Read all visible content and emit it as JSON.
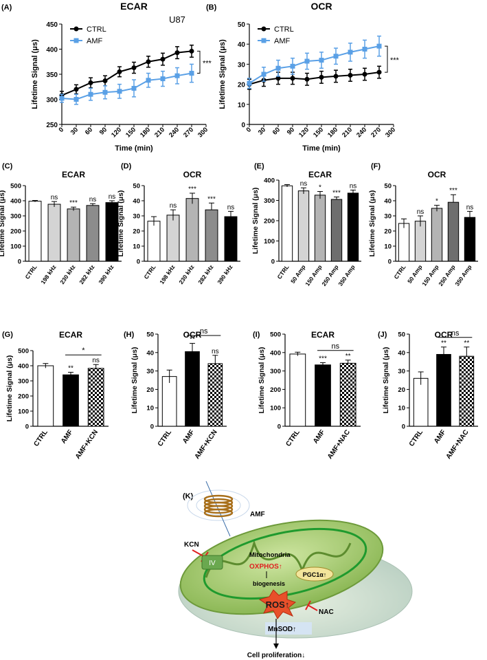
{
  "colors": {
    "ctrl": "#000000",
    "amf": "#5aa0e6",
    "gray_light": "#d4d4d4",
    "gray_mid": "#b4b4b4",
    "gray_dark": "#8c8c8c",
    "gray_darker": "#6e6e6e",
    "red": "#e02020",
    "green": "#6aa84f",
    "yellow": "#f3e59b"
  },
  "chart_data": [
    {
      "id": "A",
      "type": "line",
      "panel_label": "(A)",
      "title": "ECAR",
      "subtitle": "U87",
      "xlabel": "Time (min)",
      "ylabel": "Lifetime Signal (μs)",
      "xlim": [
        0,
        300
      ],
      "ylim": [
        250,
        450
      ],
      "xticks": [
        0,
        30,
        60,
        90,
        120,
        150,
        180,
        210,
        240,
        270,
        300
      ],
      "yticks": [
        250,
        300,
        350,
        400,
        450
      ],
      "legend": "top-left",
      "significance": "***",
      "series": [
        {
          "name": "CTRL",
          "color": "#000000",
          "x": [
            0,
            30,
            60,
            90,
            120,
            150,
            180,
            210,
            240,
            270
          ],
          "y": [
            308,
            320,
            333,
            337,
            355,
            363,
            375,
            380,
            393,
            396
          ],
          "err": [
            8,
            9,
            10,
            10,
            10,
            11,
            11,
            12,
            12,
            12
          ]
        },
        {
          "name": "AMF",
          "color": "#5aa0e6",
          "x": [
            0,
            30,
            60,
            90,
            120,
            150,
            180,
            210,
            240,
            270
          ],
          "y": [
            302,
            300,
            310,
            314,
            316,
            322,
            338,
            341,
            347,
            352
          ],
          "err": [
            8,
            10,
            12,
            13,
            14,
            17,
            14,
            15,
            16,
            18
          ]
        }
      ]
    },
    {
      "id": "B",
      "type": "line",
      "panel_label": "(B)",
      "title": "OCR",
      "subtitle": "",
      "xlabel": "Time (min)",
      "ylabel": "Lifetime Signal (μs)",
      "xlim": [
        0,
        300
      ],
      "ylim": [
        0,
        50
      ],
      "xticks": [
        0,
        30,
        60,
        90,
        120,
        150,
        180,
        210,
        240,
        270,
        300
      ],
      "yticks": [
        0,
        10,
        20,
        30,
        40,
        50
      ],
      "legend": "top-left",
      "significance": "***",
      "series": [
        {
          "name": "CTRL",
          "color": "#000000",
          "x": [
            0,
            30,
            60,
            90,
            120,
            150,
            180,
            210,
            240,
            270
          ],
          "y": [
            20,
            22,
            23,
            23,
            22.5,
            23.5,
            24,
            24.5,
            25,
            26
          ],
          "err": [
            2.5,
            3,
            3,
            3,
            3,
            3,
            3,
            3,
            3,
            3
          ]
        },
        {
          "name": "AMF",
          "color": "#5aa0e6",
          "x": [
            0,
            30,
            60,
            90,
            120,
            150,
            180,
            210,
            240,
            270
          ],
          "y": [
            20.5,
            25,
            28,
            29,
            31.5,
            32,
            34,
            36,
            37.5,
            39
          ],
          "err": [
            2.5,
            3.5,
            4,
            4,
            4,
            4,
            4,
            4.5,
            4.5,
            5
          ]
        }
      ]
    },
    {
      "id": "C",
      "type": "bar",
      "panel_label": "(C)",
      "title": "ECAR",
      "ylabel": "Lifetime Signal (μs)",
      "ylim": [
        0,
        500
      ],
      "yticks": [
        0,
        100,
        200,
        300,
        400,
        500
      ],
      "categories": [
        "CTRL",
        "198 kHz",
        "230 kHz",
        "282 kHz",
        "390 kHz"
      ],
      "values": [
        397,
        377,
        346,
        369,
        388
      ],
      "errors": [
        5,
        18,
        12,
        12,
        12
      ],
      "fills": [
        "#ffffff",
        "#d4d4d4",
        "#b4b4b4",
        "#8c8c8c",
        "#000000"
      ],
      "labels": [
        "",
        "ns",
        "***",
        "ns",
        "ns"
      ]
    },
    {
      "id": "D",
      "type": "bar",
      "panel_label": "(D)",
      "title": "OCR",
      "ylabel": "Lifetime Signal (μs)",
      "ylim": [
        0,
        50
      ],
      "yticks": [
        0,
        10,
        20,
        30,
        40,
        50
      ],
      "categories": [
        "CTRL",
        "198 kHz",
        "230 kHz",
        "282 kHz",
        "390 kHz"
      ],
      "values": [
        26.5,
        30.5,
        41.5,
        34,
        29.5
      ],
      "errors": [
        3,
        3.5,
        3.5,
        4.5,
        3.5
      ],
      "fills": [
        "#ffffff",
        "#d4d4d4",
        "#b4b4b4",
        "#8c8c8c",
        "#000000"
      ],
      "labels": [
        "",
        "ns",
        "***",
        "***",
        "ns"
      ]
    },
    {
      "id": "E",
      "type": "bar",
      "panel_label": "(E)",
      "title": "ECAR",
      "ylabel": "Lifetime Signal (μs)",
      "ylim": [
        0,
        400
      ],
      "yticks": [
        0,
        100,
        200,
        300,
        400
      ],
      "categories": [
        "CTRL",
        "50 Amp",
        "150 Amp",
        "250 Amp",
        "350 Amp"
      ],
      "values": [
        372,
        347,
        326,
        305,
        336
      ],
      "errors": [
        6,
        15,
        18,
        12,
        15
      ],
      "fills": [
        "#ffffff",
        "#d4d4d4",
        "#b4b4b4",
        "#6e6e6e",
        "#000000"
      ],
      "labels": [
        "",
        "ns",
        "*",
        "***",
        "ns"
      ]
    },
    {
      "id": "F",
      "type": "bar",
      "panel_label": "(F)",
      "title": "OCR",
      "ylabel": "Lifetime Signal (μs)",
      "ylim": [
        0,
        50
      ],
      "yticks": [
        0,
        10,
        20,
        30,
        40,
        50
      ],
      "categories": [
        "CTRL",
        "50 Amp",
        "150 Amp",
        "250 Amp",
        "350 Amp"
      ],
      "values": [
        25,
        26.5,
        35,
        39,
        29
      ],
      "errors": [
        3,
        3.5,
        2,
        5,
        4
      ],
      "fills": [
        "#ffffff",
        "#d4d4d4",
        "#b4b4b4",
        "#6e6e6e",
        "#000000"
      ],
      "labels": [
        "",
        "ns",
        "*",
        "***",
        "ns"
      ]
    },
    {
      "id": "G",
      "type": "bar",
      "panel_label": "(G)",
      "title": "ECAR",
      "ylabel": "Lifetime Signal (μs)",
      "ylim": [
        0,
        500
      ],
      "yticks": [
        0,
        100,
        200,
        300,
        400,
        500
      ],
      "categories": [
        "CTRL",
        "AMF",
        "AMF+KCN"
      ],
      "values": [
        400,
        340,
        383
      ],
      "errors": [
        15,
        17,
        25
      ],
      "fills": [
        "#ffffff",
        "#000000",
        "checker"
      ],
      "labels": [
        "",
        "**",
        "ns"
      ],
      "bracket": {
        "from": 1,
        "to": 2,
        "label": "*"
      }
    },
    {
      "id": "H",
      "type": "bar",
      "panel_label": "(H)",
      "title": "OCR",
      "ylabel": "Lifetime Signal (μs)",
      "ylim": [
        0,
        50
      ],
      "yticks": [
        0,
        10,
        20,
        30,
        40,
        50
      ],
      "categories": [
        "CTRL",
        "AMF",
        "AMF+KCN"
      ],
      "values": [
        27,
        40.5,
        34
      ],
      "errors": [
        3.5,
        4.5,
        4.5
      ],
      "fills": [
        "#ffffff",
        "#000000",
        "checker"
      ],
      "labels": [
        "",
        "**",
        "ns"
      ],
      "bracket": {
        "from": 1,
        "to": 2,
        "label": "ns"
      }
    },
    {
      "id": "I",
      "type": "bar",
      "panel_label": "(I)",
      "title": "ECAR",
      "ylabel": "Lifetime Signal (μs)",
      "ylim": [
        0,
        500
      ],
      "yticks": [
        0,
        100,
        200,
        300,
        400,
        500
      ],
      "categories": [
        "CTRL",
        "AMF",
        "AMF+NAC"
      ],
      "values": [
        392,
        333,
        342
      ],
      "errors": [
        10,
        12,
        17
      ],
      "fills": [
        "#ffffff",
        "#000000",
        "checker"
      ],
      "labels": [
        "",
        "***",
        "**"
      ],
      "bracket": {
        "from": 1,
        "to": 2,
        "label": "ns"
      }
    },
    {
      "id": "J",
      "type": "bar",
      "panel_label": "(J)",
      "title": "OCR",
      "ylabel": "Lifetime Signal (μs)",
      "ylim": [
        0,
        50
      ],
      "yticks": [
        0,
        10,
        20,
        30,
        40,
        50
      ],
      "categories": [
        "CTRL",
        "AMF",
        "AMF+NAC"
      ],
      "values": [
        26,
        39,
        38
      ],
      "errors": [
        3.5,
        4,
        5
      ],
      "fills": [
        "#ffffff",
        "#000000",
        "checker"
      ],
      "labels": [
        "",
        "**",
        "**"
      ],
      "bracket": {
        "from": 1,
        "to": 2,
        "label": "ns"
      }
    }
  ],
  "diagram": {
    "panel_label": "(K)",
    "amf": "AMF",
    "kcn": "KCN",
    "complex": "IV",
    "mitochondria": "Mitochondria",
    "oxphos": "OXPHOS",
    "biogenesis": "biogenesis",
    "pgc": "PGC1α",
    "ros": "ROS",
    "nac": "NAC",
    "mnsod": "MnSOD",
    "outcome": "Cell proliferation",
    "up_arrow": "↑",
    "down_arrow": "↓"
  }
}
